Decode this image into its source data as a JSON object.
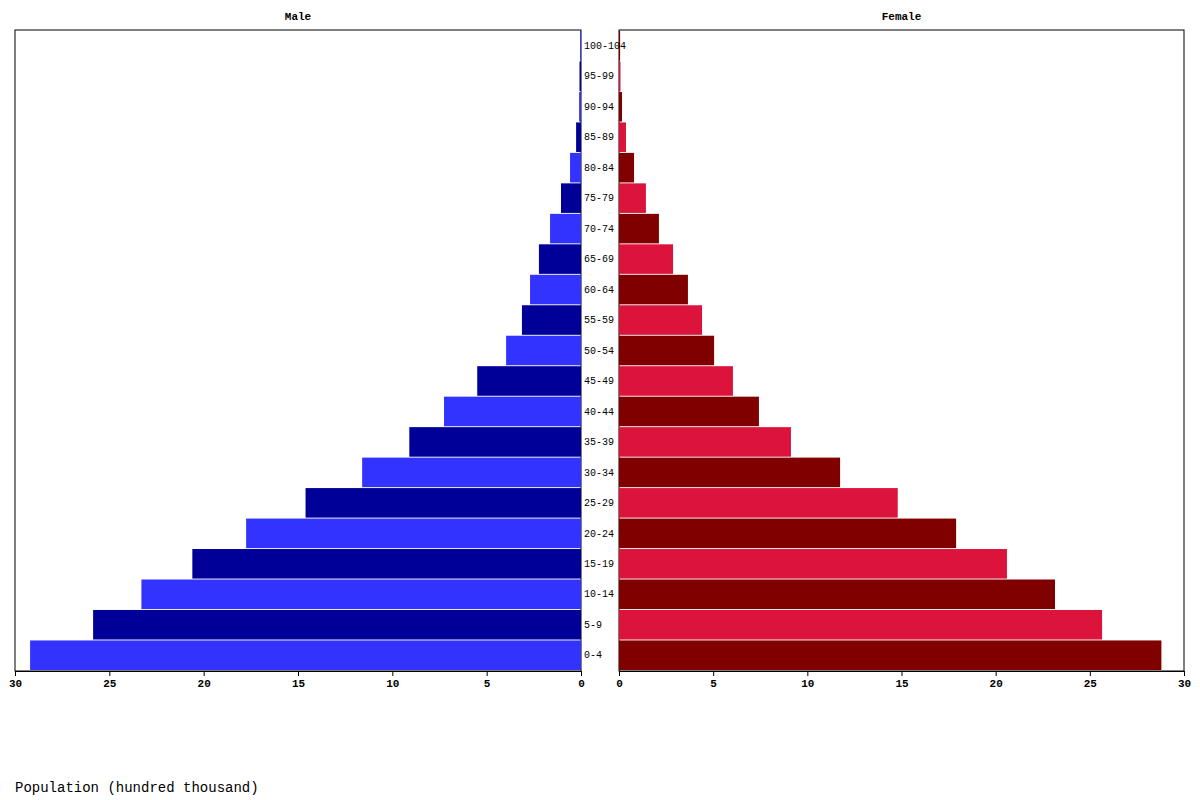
{
  "chart_data": {
    "type": "bar",
    "orientation": "horizontal",
    "x_label": "Population (hundred thousand)",
    "categories": [
      "0-4",
      "5-9",
      "10-14",
      "15-19",
      "20-24",
      "25-29",
      "30-34",
      "35-39",
      "40-44",
      "45-49",
      "50-54",
      "55-59",
      "60-64",
      "65-69",
      "70-74",
      "75-79",
      "80-84",
      "85-89",
      "90-94",
      "95-99",
      "100-104"
    ],
    "series": [
      {
        "name": "Male",
        "values": [
          29.2,
          25.86,
          23.3,
          20.6,
          17.75,
          14.6,
          11.6,
          9.1,
          7.26,
          5.5,
          3.97,
          3.13,
          2.7,
          2.23,
          1.64,
          1.06,
          0.58,
          0.26,
          0.1,
          0.08,
          0.05
        ],
        "colors": [
          "#3333ff",
          "#000099",
          "#3333ff",
          "#000099",
          "#3333ff",
          "#000099",
          "#3333ff",
          "#000099",
          "#3333ff",
          "#000099",
          "#3333ff",
          "#000099",
          "#3333ff",
          "#000099",
          "#3333ff",
          "#000099",
          "#3333ff",
          "#000099",
          "#3333ff",
          "#000099",
          "#3333ff"
        ]
      },
      {
        "name": "Female",
        "values": [
          28.8,
          25.65,
          23.15,
          20.6,
          17.9,
          14.8,
          11.74,
          9.13,
          7.43,
          6.05,
          5.05,
          4.41,
          3.66,
          2.87,
          2.12,
          1.43,
          0.8,
          0.37,
          0.16,
          0.08,
          0.06
        ],
        "colors": [
          "#800000",
          "#dc143c",
          "#800000",
          "#dc143c",
          "#800000",
          "#dc143c",
          "#800000",
          "#dc143c",
          "#800000",
          "#dc143c",
          "#800000",
          "#dc143c",
          "#800000",
          "#dc143c",
          "#800000",
          "#dc143c",
          "#800000",
          "#dc143c",
          "#800000",
          "#dc143c",
          "#800000"
        ]
      }
    ],
    "xlim": [
      0,
      30
    ],
    "xticks": [
      0,
      5,
      10,
      15,
      20,
      25,
      30
    ],
    "grid": false
  }
}
